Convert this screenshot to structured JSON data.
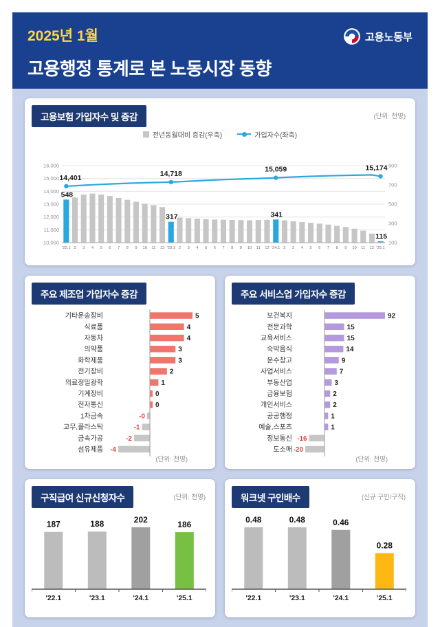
{
  "colors": {
    "band": "#19418f",
    "page_bg": "#c7d3eb",
    "badge_bg": "#1e3a74",
    "accent_yellow": "#ffd83d",
    "line_blue": "#29a8e0",
    "bar_gray": "#c6c6c6",
    "bar_gray_dark": "#a0a0a0",
    "mfg_red": "#f0756b",
    "svc_purple": "#b49add",
    "benefit_green": "#77c043",
    "ratio_yellow": "#fdb813",
    "negative_red": "#e8413c"
  },
  "header": {
    "date": "2025년 1월",
    "title": "고용행정 통계로 본 노동시장 동향",
    "logo_text": "고용노동부"
  },
  "insured_card": {
    "title": "고용보험 가입자수 및 증감",
    "unit": "(단위: 천명)",
    "legend_bar": "전년동월대비 증감(우축)",
    "legend_line": "가입자수(좌축)"
  },
  "manufacturing_card": {
    "title": "주요 제조업 가입자수 증감",
    "unit": "(단위: 천명)"
  },
  "services_card": {
    "title": "주요 서비스업 가입자수 증감",
    "unit": "(단위: 천명)"
  },
  "benefit_card": {
    "title": "구직급여 신규신청자수",
    "unit": "(단위: 천명)"
  },
  "ratio_card": {
    "title": "워크넷 구인배수",
    "unit": "(신규 구인/구직)"
  },
  "chart_data": [
    {
      "id": "insured",
      "type": "combo",
      "title": "고용보험 가입자수 및 증감",
      "unit": "천명",
      "legend": [
        "전년동월대비 증감(우축)",
        "가입자수(좌축)"
      ],
      "x": [
        "'22.1",
        "2",
        "3",
        "4",
        "5",
        "6",
        "7",
        "8",
        "9",
        "10",
        "11",
        "12",
        "'23.1",
        "2",
        "3",
        "4",
        "5",
        "6",
        "7",
        "8",
        "9",
        "10",
        "11",
        "12",
        "'24.1",
        "2",
        "3",
        "4",
        "5",
        "6",
        "7",
        "8",
        "9",
        "10",
        "11",
        "12",
        "'25.1"
      ],
      "bar_series": {
        "name": "전년동월대비 증감(우축)",
        "axis": "right",
        "values": [
          548,
          570,
          600,
          610,
          600,
          585,
          565,
          545,
          525,
          505,
          490,
          470,
          317,
          360,
          355,
          350,
          345,
          340,
          338,
          336,
          334,
          333,
          335,
          338,
          341,
          332,
          323,
          315,
          307,
          298,
          288,
          276,
          262,
          245,
          225,
          195,
          115
        ]
      },
      "line_series": {
        "name": "가입자수(좌축)",
        "axis": "left",
        "values": [
          14401,
          14435,
          14472,
          14510,
          14545,
          14576,
          14604,
          14628,
          14650,
          14670,
          14690,
          14706,
          14718,
          14752,
          14788,
          14822,
          14854,
          14884,
          14912,
          14938,
          14962,
          14984,
          15005,
          15030,
          15059,
          15090,
          15118,
          15144,
          15168,
          15190,
          15210,
          15228,
          15244,
          15258,
          15270,
          15280,
          15174
        ]
      },
      "left_axis": {
        "min": 10000,
        "max": 16000,
        "ticks": [
          16000,
          15000,
          14000,
          13000,
          12000,
          11000,
          10000
        ]
      },
      "right_axis": {
        "min": 100,
        "max": 900,
        "ticks": [
          900,
          700,
          500,
          300,
          100
        ]
      },
      "labeled_points": [
        {
          "index": 0,
          "line_label": "14,401",
          "bar_label": "548"
        },
        {
          "index": 12,
          "line_label": "14,718",
          "bar_label": "317"
        },
        {
          "index": 24,
          "line_label": "15,059",
          "bar_label": "341"
        },
        {
          "index": 36,
          "line_label": "15,174",
          "bar_label": "115"
        }
      ]
    },
    {
      "id": "manufacturing",
      "type": "bar",
      "orientation": "horizontal",
      "title": "주요 제조업 가입자수 증감",
      "unit": "천명",
      "categories": [
        "기타운송장비",
        "식료품",
        "자동차",
        "의약품",
        "화학제품",
        "전기장비",
        "의료정밀광학",
        "기계장비",
        "전자통신",
        "1차금속",
        "고무,플라스틱",
        "금속가공",
        "섬유제품"
      ],
      "values": [
        5,
        4,
        4,
        3,
        3,
        2,
        1,
        0,
        0,
        0,
        -1,
        -2,
        -4
      ],
      "labels": [
        "5",
        "4",
        "4",
        "3",
        "3",
        "2",
        "1",
        "0",
        "0",
        "-0",
        "-1",
        "-2",
        "-4"
      ]
    },
    {
      "id": "services",
      "type": "bar",
      "orientation": "horizontal",
      "title": "주요 서비스업 가입자수 증감",
      "unit": "천명",
      "categories": [
        "보건복지",
        "전문과학",
        "교육서비스",
        "숙박음식",
        "운수창고",
        "사업서비스",
        "부동산업",
        "금융보험",
        "개인서비스",
        "공공행정",
        "예술,스포츠",
        "정보통신",
        "도소매"
      ],
      "values": [
        92,
        15,
        15,
        14,
        9,
        7,
        3,
        2,
        2,
        1,
        1,
        -16,
        -20
      ],
      "labels": [
        "92",
        "15",
        "15",
        "14",
        "9",
        "7",
        "3",
        "2",
        "2",
        "1",
        "1",
        "-16",
        "-20"
      ]
    },
    {
      "id": "benefit",
      "type": "bar",
      "title": "구직급여 신규신청자수",
      "unit": "천명",
      "categories": [
        "'22.1",
        "'23.1",
        "'24.1",
        "'25.1"
      ],
      "values": [
        187,
        188,
        202,
        186
      ],
      "labels": [
        "187",
        "188",
        "202",
        "186"
      ],
      "highlight_index": 3,
      "highlight_color": "#77c043"
    },
    {
      "id": "ratio",
      "type": "bar",
      "title": "워크넷 구인배수",
      "unit": "신규 구인/구직",
      "categories": [
        "'22.1",
        "'23.1",
        "'24.1",
        "'25.1"
      ],
      "values": [
        0.48,
        0.48,
        0.46,
        0.28
      ],
      "labels": [
        "0.48",
        "0.48",
        "0.46",
        "0.28"
      ],
      "highlight_index": 3,
      "highlight_color": "#fdb813"
    }
  ]
}
